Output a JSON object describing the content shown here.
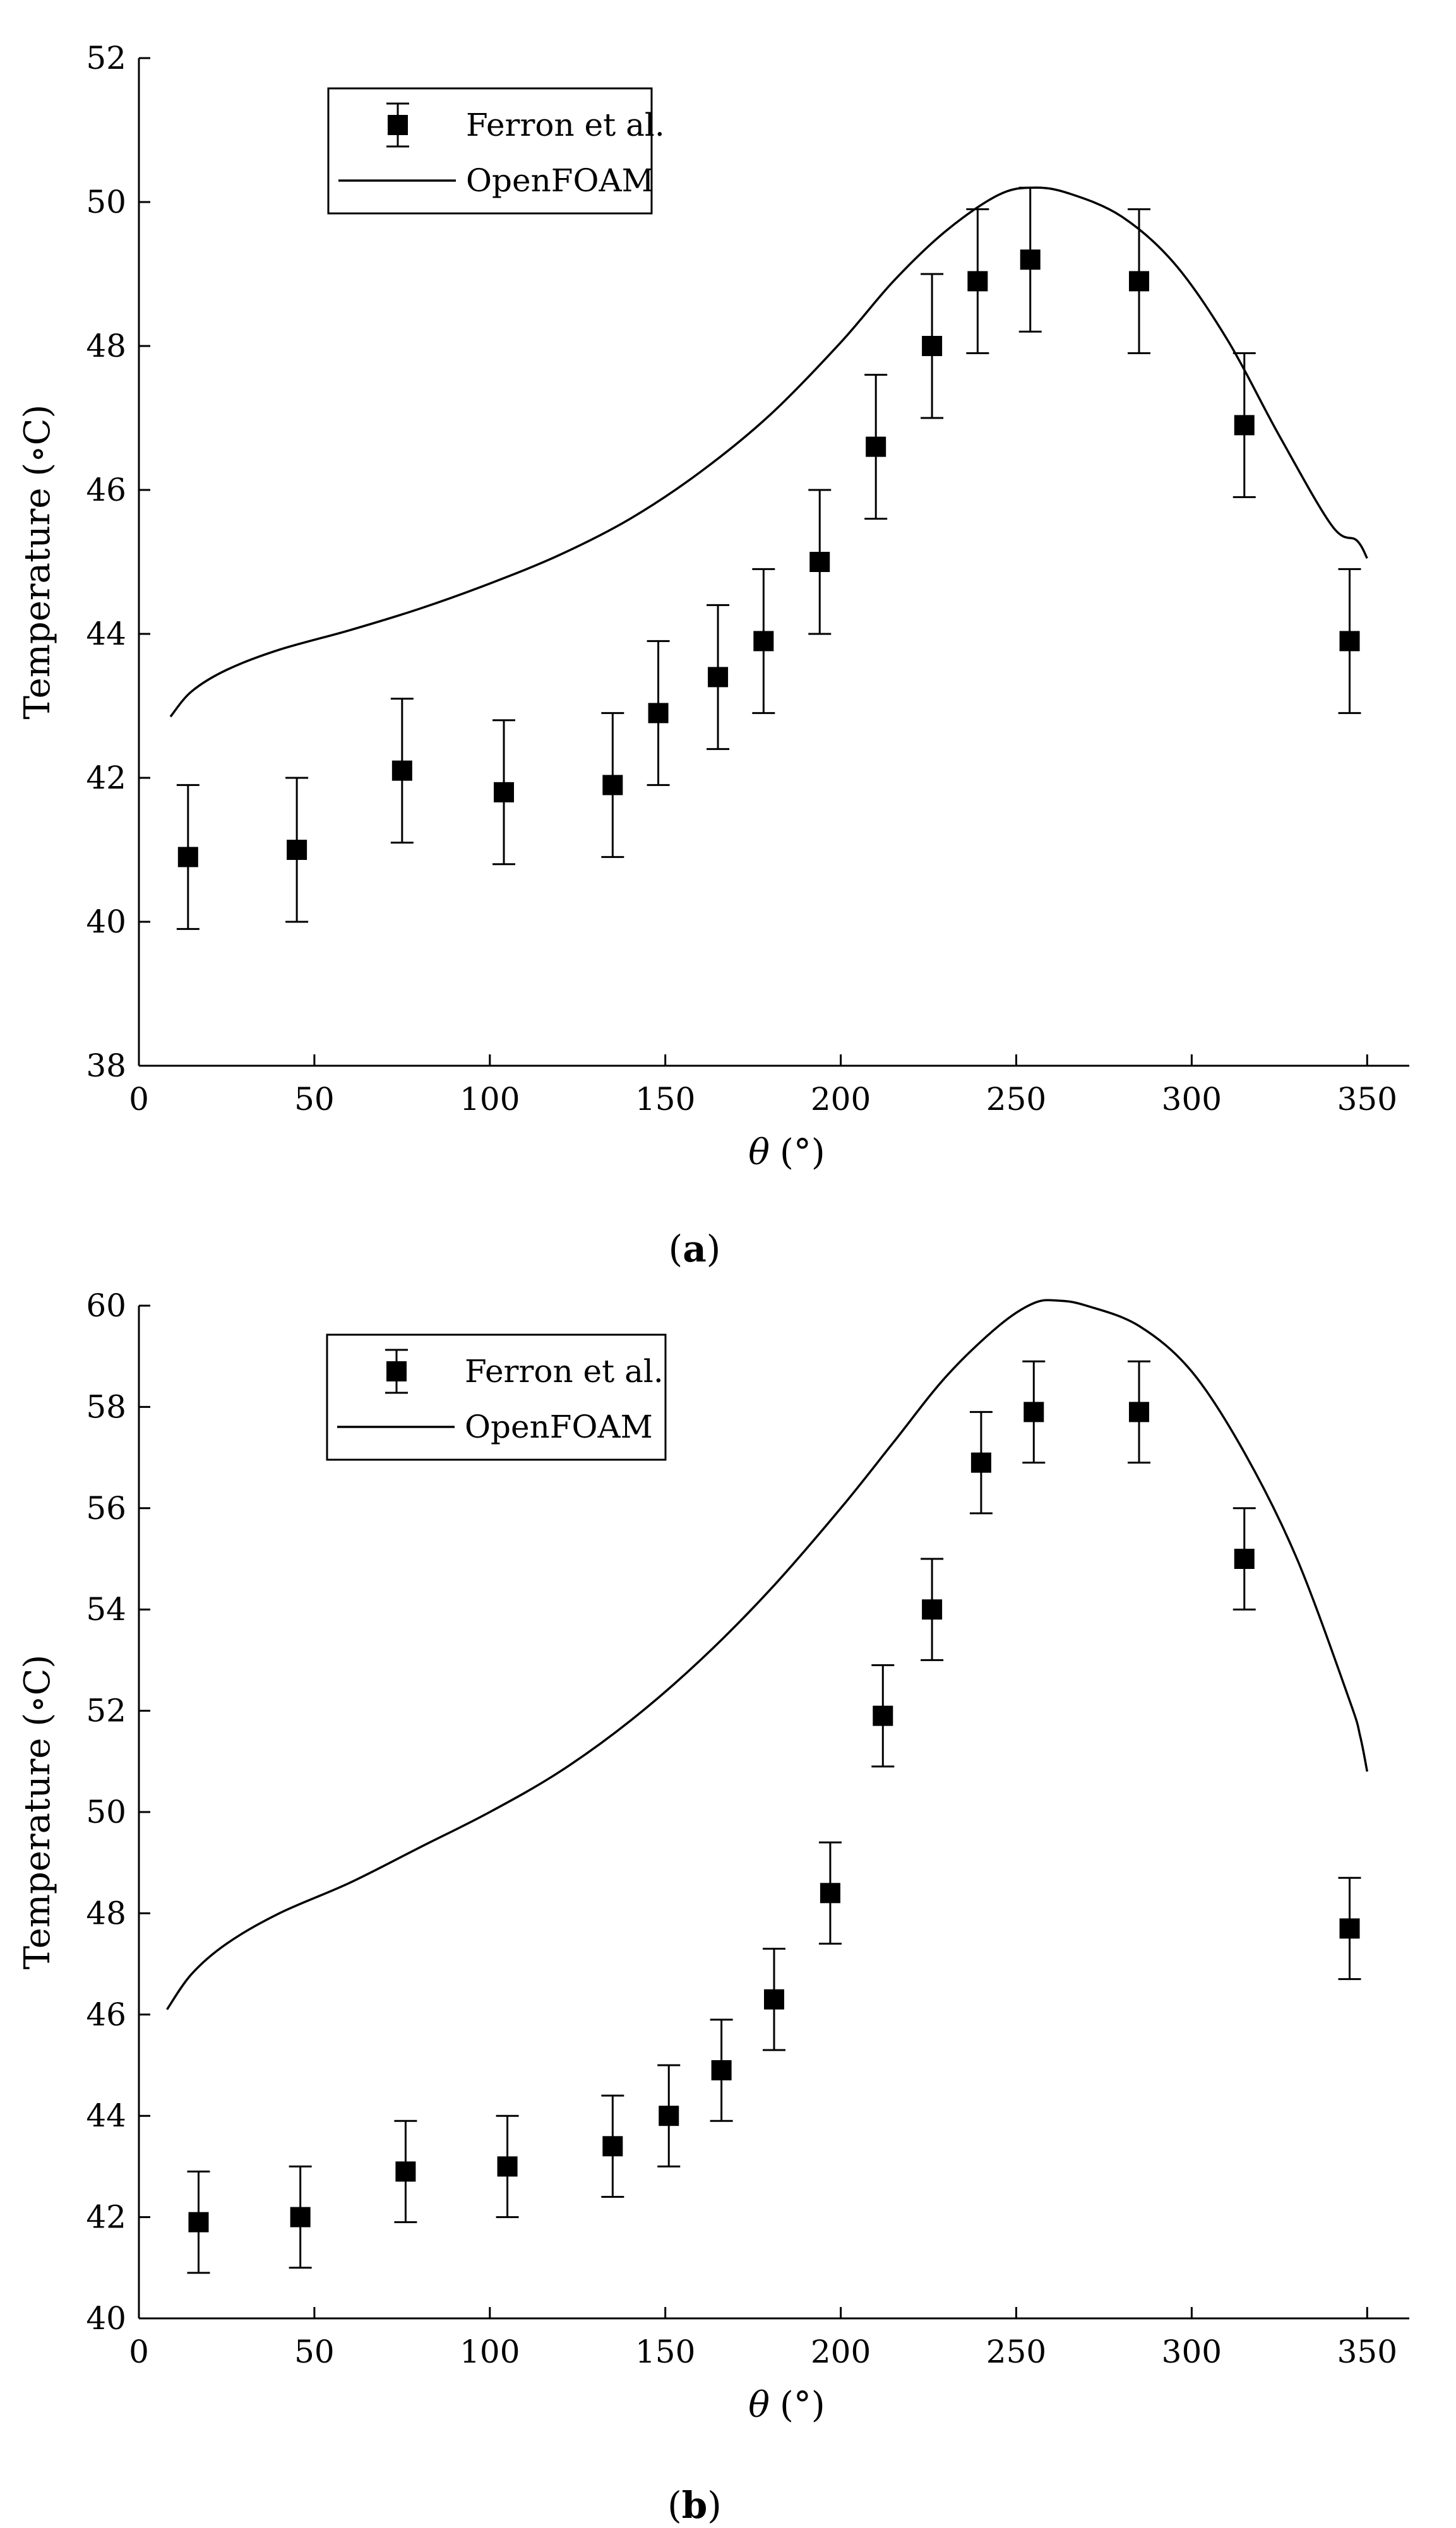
{
  "chart_data": [
    {
      "type": "scatter",
      "caption_letter": "a",
      "xlabel_symbol": "θ",
      "xlabel_unit": "(°)",
      "ylabel": "Temperature (∘C)",
      "xlim": [
        0,
        362
      ],
      "ylim": [
        38,
        52
      ],
      "xticks": [
        0,
        50,
        100,
        150,
        200,
        250,
        300,
        350
      ],
      "yticks": [
        38,
        40,
        42,
        44,
        46,
        48,
        50,
        52
      ],
      "legend_position": "top-left",
      "series": [
        {
          "name": "Ferron et al.",
          "kind": "points_with_errorbars",
          "points": [
            {
              "x": 14,
              "y": 40.9,
              "err": 1.0
            },
            {
              "x": 45,
              "y": 41.0,
              "err": 1.0
            },
            {
              "x": 75,
              "y": 42.1,
              "err": 1.0
            },
            {
              "x": 104,
              "y": 41.8,
              "err": 1.0
            },
            {
              "x": 135,
              "y": 41.9,
              "err": 1.0
            },
            {
              "x": 148,
              "y": 42.9,
              "err": 1.0
            },
            {
              "x": 165,
              "y": 43.4,
              "err": 1.0
            },
            {
              "x": 178,
              "y": 43.9,
              "err": 1.0
            },
            {
              "x": 194,
              "y": 45.0,
              "err": 1.0
            },
            {
              "x": 210,
              "y": 46.6,
              "err": 1.0
            },
            {
              "x": 226,
              "y": 48.0,
              "err": 1.0
            },
            {
              "x": 239,
              "y": 48.9,
              "err": 1.0
            },
            {
              "x": 254,
              "y": 49.2,
              "err": 1.0
            },
            {
              "x": 285,
              "y": 48.9,
              "err": 1.0
            },
            {
              "x": 315,
              "y": 46.9,
              "err": 1.0
            },
            {
              "x": 345,
              "y": 43.9,
              "err": 1.0
            }
          ]
        },
        {
          "name": "OpenFOAM",
          "kind": "line",
          "x": [
            9,
            15,
            25,
            40,
            60,
            80,
            100,
            120,
            140,
            160,
            180,
            200,
            215,
            230,
            245,
            255,
            265,
            280,
            295,
            310,
            325,
            340,
            347,
            350
          ],
          "y": [
            42.85,
            43.2,
            43.5,
            43.78,
            44.05,
            44.35,
            44.7,
            45.1,
            45.6,
            46.25,
            47.05,
            48.05,
            48.9,
            49.6,
            50.1,
            50.2,
            50.12,
            49.8,
            49.15,
            48.1,
            46.75,
            45.5,
            45.3,
            45.05
          ]
        }
      ]
    },
    {
      "type": "scatter",
      "caption_letter": "b",
      "xlabel_symbol": "θ",
      "xlabel_unit": "(°)",
      "ylabel": "Temperature (∘C)",
      "xlim": [
        0,
        362
      ],
      "ylim": [
        40,
        60
      ],
      "xticks": [
        0,
        50,
        100,
        150,
        200,
        250,
        300,
        350
      ],
      "yticks": [
        40,
        42,
        44,
        46,
        48,
        50,
        52,
        54,
        56,
        58,
        60
      ],
      "legend_position": "top-left",
      "series": [
        {
          "name": "Ferron et al.",
          "kind": "points_with_errorbars",
          "points": [
            {
              "x": 17,
              "y": 41.9,
              "err": 1.0
            },
            {
              "x": 46,
              "y": 42.0,
              "err": 1.0
            },
            {
              "x": 76,
              "y": 42.9,
              "err": 1.0
            },
            {
              "x": 105,
              "y": 43.0,
              "err": 1.0
            },
            {
              "x": 135,
              "y": 43.4,
              "err": 1.0
            },
            {
              "x": 151,
              "y": 44.0,
              "err": 1.0
            },
            {
              "x": 166,
              "y": 44.9,
              "err": 1.0
            },
            {
              "x": 181,
              "y": 46.3,
              "err": 1.0
            },
            {
              "x": 197,
              "y": 48.4,
              "err": 1.0
            },
            {
              "x": 212,
              "y": 51.9,
              "err": 1.0
            },
            {
              "x": 226,
              "y": 54.0,
              "err": 1.0
            },
            {
              "x": 240,
              "y": 56.9,
              "err": 1.0
            },
            {
              "x": 255,
              "y": 57.9,
              "err": 1.0
            },
            {
              "x": 285,
              "y": 57.9,
              "err": 1.0
            },
            {
              "x": 315,
              "y": 55.0,
              "err": 1.0
            },
            {
              "x": 345,
              "y": 47.7,
              "err": 1.0
            }
          ]
        },
        {
          "name": "OpenFOAM",
          "kind": "line",
          "x": [
            8,
            15,
            25,
            40,
            60,
            80,
            100,
            120,
            140,
            160,
            180,
            200,
            215,
            230,
            245,
            255,
            262,
            270,
            285,
            300,
            315,
            330,
            345,
            348,
            350
          ],
          "y": [
            46.1,
            46.8,
            47.4,
            48.0,
            48.6,
            49.3,
            50.0,
            50.8,
            51.8,
            53.0,
            54.4,
            56.0,
            57.3,
            58.6,
            59.6,
            60.05,
            60.1,
            60.0,
            59.6,
            58.7,
            57.1,
            55.0,
            52.2,
            51.5,
            50.8
          ]
        }
      ]
    }
  ]
}
